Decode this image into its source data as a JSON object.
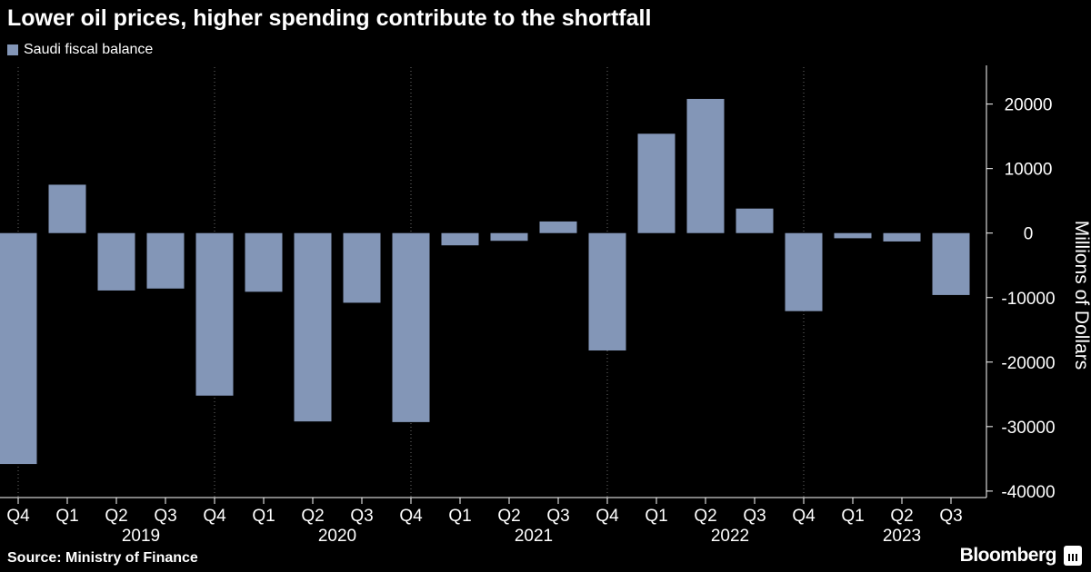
{
  "title": "Lower oil prices, higher spending contribute to the shortfall",
  "footer": {
    "source": "Source: Ministry of Finance",
    "brand": "Bloomberg"
  },
  "colors": {
    "background": "#000000",
    "bar": "#8396b7",
    "text": "#ffffff",
    "grid": "#6b6b6b"
  },
  "chart_data": {
    "type": "bar",
    "ylabel": "Millions of Dollars",
    "ylim": [
      -41000,
      26000
    ],
    "yticks": [
      20000,
      10000,
      0,
      -10000,
      -20000,
      -30000,
      -40000
    ],
    "ytick_labels": [
      "20000",
      "10000",
      "0",
      "-10000",
      "-20000",
      "-30000",
      "-40000"
    ],
    "grid": "vertical dotted lines at year boundaries",
    "legend_position": "top-left",
    "categories": [
      "Q4",
      "Q1",
      "Q2",
      "Q3",
      "Q4",
      "Q1",
      "Q2",
      "Q3",
      "Q4",
      "Q1",
      "Q2",
      "Q3",
      "Q4",
      "Q1",
      "Q2",
      "Q3",
      "Q4",
      "Q1",
      "Q2",
      "Q3"
    ],
    "years": [
      {
        "label": "2019",
        "start": 1,
        "end": 4
      },
      {
        "label": "2020",
        "start": 5,
        "end": 8
      },
      {
        "label": "2021",
        "start": 9,
        "end": 12
      },
      {
        "label": "2022",
        "start": 13,
        "end": 16
      },
      {
        "label": "2023",
        "start": 17,
        "end": 19
      }
    ],
    "series": [
      {
        "name": "Saudi fiscal balance",
        "values": [
          -35800,
          7500,
          -8900,
          -8600,
          -25200,
          -9100,
          -29200,
          -10800,
          -29300,
          -1900,
          -1200,
          1800,
          -18200,
          15400,
          20800,
          3800,
          -12100,
          -800,
          -1300,
          -9600
        ]
      }
    ]
  }
}
